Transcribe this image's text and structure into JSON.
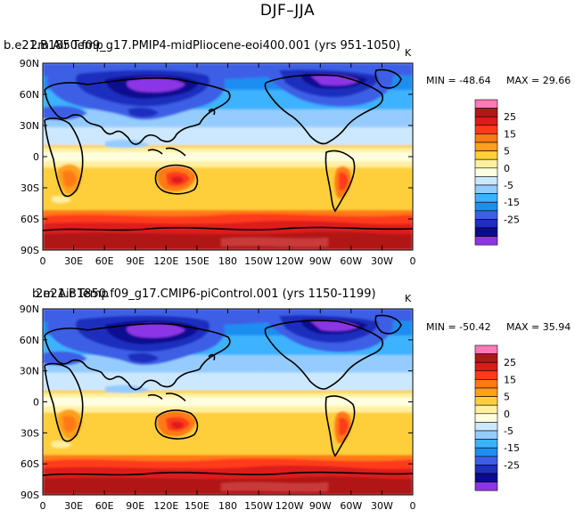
{
  "figure": {
    "title": "DJF–JJA"
  },
  "panels": [
    {
      "case_title": "b.e21.B1850.f09_g17.PMIP4-midPliocene-eoi400.001 (yrs 951-1050)",
      "variable_title": "2m Air Temp",
      "units": "K",
      "min_label": "MIN = -48.64",
      "max_label": "MAX = 29.66"
    },
    {
      "case_title": "b.e21.B1850.f09_g17.CMIP6-piControl.001 (yrs 1150-1199)",
      "variable_title": "2m Air Temp",
      "units": "K",
      "min_label": "MIN = -50.42",
      "max_label": "MAX = 35.94"
    }
  ],
  "axes": {
    "lat_ticks": [
      "90N",
      "60N",
      "30N",
      "0",
      "30S",
      "60S",
      "90S"
    ],
    "lon_ticks": [
      "0",
      "30E",
      "60E",
      "90E",
      "120E",
      "150E",
      "180",
      "150W",
      "120W",
      "90W",
      "60W",
      "30W",
      "0"
    ]
  },
  "colorbar": {
    "labels": [
      "25",
      "15",
      "5",
      "0",
      "-5",
      "-15",
      "-25"
    ],
    "colors": [
      "#ff78b8",
      "#b01818",
      "#dd1a1a",
      "#ff3a1a",
      "#ff7a14",
      "#ffa01a",
      "#ffcf3a",
      "#fff0a0",
      "#ffffe0",
      "#cce8ff",
      "#95ccff",
      "#3cb2ff",
      "#1d8ef2",
      "#3d5fe6",
      "#1e2fbe",
      "#0a0a90",
      "#8c34e6"
    ]
  }
}
